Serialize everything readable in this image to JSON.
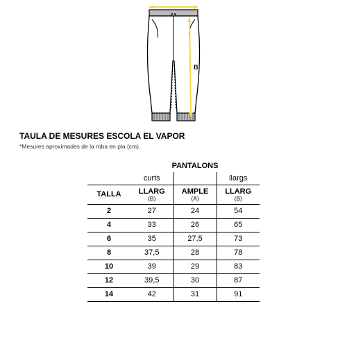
{
  "title": "TAULA DE MESURES ESCOLA EL VAPOR",
  "subtitle": "*Mesures aproximades de la roba en pla (cm).",
  "category_header": "PANTALONS",
  "group_labels": {
    "curts": "curts",
    "llargs": "llargs"
  },
  "column_headers": {
    "talla": "TALLA",
    "llarg_b": "LLARG",
    "llarg_b_sub": "(B)",
    "ample_a": "AMPLE",
    "ample_a_sub": "(A)",
    "llarg_b2": "LLARG",
    "llarg_b2_sub": "(B)"
  },
  "rows": [
    {
      "talla": "2",
      "curts_llarg": "27",
      "ample": "24",
      "llargs_llarg": "54"
    },
    {
      "talla": "4",
      "curts_llarg": "33",
      "ample": "26",
      "llargs_llarg": "65"
    },
    {
      "talla": "6",
      "curts_llarg": "35",
      "ample": "27,5",
      "llargs_llarg": "73"
    },
    {
      "talla": "8",
      "curts_llarg": "37,5",
      "ample": "28",
      "llargs_llarg": "78"
    },
    {
      "talla": "10",
      "curts_llarg": "39",
      "ample": "29",
      "llargs_llarg": "83"
    },
    {
      "talla": "12",
      "curts_llarg": "39,5",
      "ample": "30",
      "llargs_llarg": "87"
    },
    {
      "talla": "14",
      "curts_llarg": "42",
      "ample": "31",
      "llargs_llarg": "91"
    }
  ],
  "illustration": {
    "label_a": "A",
    "label_b": "B",
    "outline_color": "#000000",
    "cuff_fill": "#bcbcbc",
    "accent_color": "#f2d84b",
    "bg": "#ffffff"
  }
}
